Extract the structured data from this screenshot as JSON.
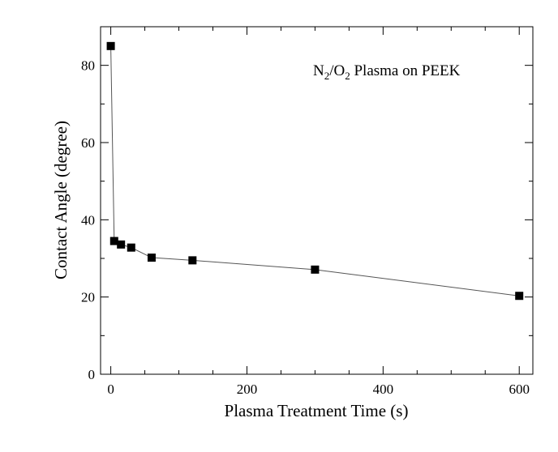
{
  "chart_data": {
    "type": "scatter",
    "connected": true,
    "title": "",
    "annotation": {
      "prefix": "N",
      "sub1": "2",
      "mid": "/O",
      "sub2": "2",
      "suffix": " Plasma on PEEK"
    },
    "xlabel": "Plasma Treatment Time (s)",
    "ylabel": "Contact Angle (degree)",
    "xlim": [
      -15,
      620
    ],
    "ylim": [
      0,
      90
    ],
    "xticks_major": [
      0,
      200,
      400,
      600
    ],
    "yticks_major": [
      0,
      20,
      40,
      60,
      80
    ],
    "xtick_labels": [
      "0",
      "200",
      "400",
      "600"
    ],
    "ytick_labels": [
      "0",
      "20",
      "40",
      "60",
      "80"
    ],
    "grid": false,
    "legend": "none",
    "series": [
      {
        "marker": "square",
        "color": "#000000",
        "x": [
          0,
          5,
          15,
          30,
          60,
          120,
          300,
          600
        ],
        "y": [
          85,
          34.5,
          33.6,
          32.8,
          30.2,
          29.5,
          27.1,
          20.3
        ]
      }
    ]
  }
}
